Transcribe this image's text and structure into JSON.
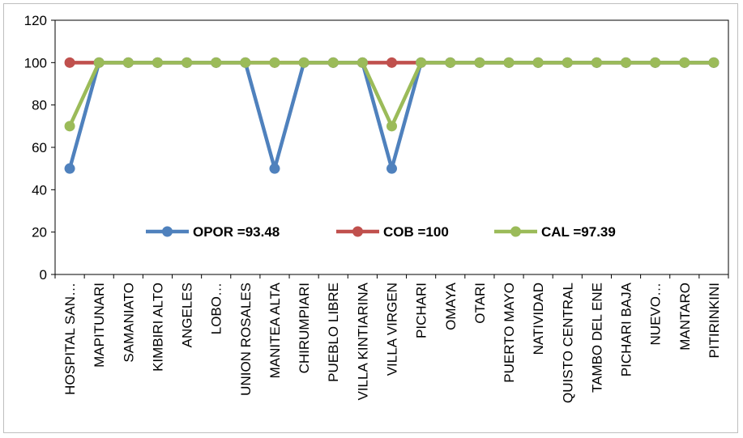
{
  "chart_data": {
    "type": "line",
    "title": "",
    "xlabel": "",
    "ylabel": "",
    "ylim": [
      0,
      120
    ],
    "yticks": [
      0,
      20,
      40,
      60,
      80,
      100,
      120
    ],
    "grid": false,
    "legend_position": "inside-bottom-center",
    "categories": [
      "HOSPITAL SAN…",
      "MAPITUNARI",
      "SAMANIATO",
      "KIMBIRI ALTO",
      "ANGELES",
      "LOBO…",
      "UNION ROSALES",
      "MANITEA ALTA",
      "CHIRUMPIARI",
      "PUEBLO LIBRE",
      "VILLA KINTIARINA",
      "VILLA VIRGEN",
      "PICHARI",
      "OMAYA",
      "OTARI",
      "PUERTO MAYO",
      "NATIVIDAD",
      "QUISTO CENTRAL",
      "TAMBO DEL ENE",
      "PICHARI BAJA",
      "NUEVO…",
      "MANTARO",
      "PITIRINKINI"
    ],
    "series": [
      {
        "name": "OPOR =93.48",
        "color": "#4f81bd",
        "values": [
          50,
          100,
          100,
          100,
          100,
          100,
          100,
          50,
          100,
          100,
          100,
          50,
          100,
          100,
          100,
          100,
          100,
          100,
          100,
          100,
          100,
          100,
          100
        ]
      },
      {
        "name": "COB =100",
        "color": "#c0504d",
        "values": [
          100,
          100,
          100,
          100,
          100,
          100,
          100,
          100,
          100,
          100,
          100,
          100,
          100,
          100,
          100,
          100,
          100,
          100,
          100,
          100,
          100,
          100,
          100
        ]
      },
      {
        "name": "CAL =97.39",
        "color": "#9bbb59",
        "values": [
          70,
          100,
          100,
          100,
          100,
          100,
          100,
          100,
          100,
          100,
          100,
          70,
          100,
          100,
          100,
          100,
          100,
          100,
          100,
          100,
          100,
          100,
          100
        ]
      }
    ]
  }
}
